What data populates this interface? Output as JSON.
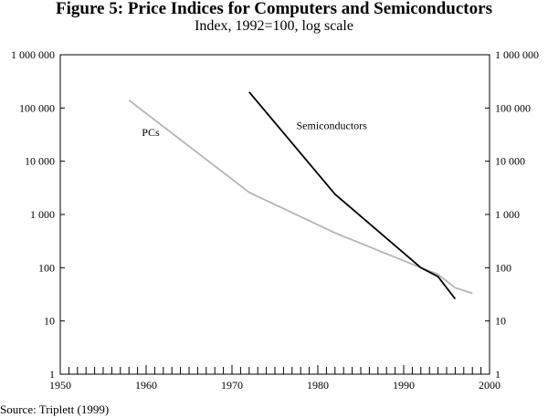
{
  "header": {
    "title": "Figure 5: Price Indices for Computers and Semiconductors",
    "subtitle": "Index, 1992=100, log scale"
  },
  "footer": {
    "source": "Source: Triplett (1999)"
  },
  "colors": {
    "pcs": "#b4b4b4",
    "semiconductors": "#000000",
    "axis": "#000000"
  },
  "chart_data": {
    "type": "line",
    "title": "Figure 5: Price Indices for Computers and Semiconductors",
    "subtitle": "Index, 1992=100, log scale",
    "xlim": [
      1950,
      2000
    ],
    "ylim": [
      1,
      1000000
    ],
    "yscale": "log",
    "grid": false,
    "legend": "inline labels",
    "x_ticks": [
      "1950",
      "1960",
      "1970",
      "1980",
      "1990",
      "2000"
    ],
    "y_ticks": [
      "1 000 000",
      "100 000",
      "10 000",
      "1 000",
      "100",
      "10",
      "1"
    ],
    "y_tick_values": [
      1000000,
      100000,
      10000,
      1000,
      100,
      10,
      1
    ],
    "series": [
      {
        "name": "PCs",
        "color": "#b4b4b4",
        "x": [
          1958,
          1972,
          1982,
          1992,
          1994,
          1996,
          1998
        ],
        "y": [
          140000,
          2600,
          450,
          100,
          75,
          42,
          33
        ]
      },
      {
        "name": "Semiconductors",
        "color": "#000000",
        "x": [
          1972,
          1982,
          1992,
          1994,
          1996
        ],
        "y": [
          200000,
          2400,
          100,
          68,
          26
        ]
      }
    ]
  }
}
